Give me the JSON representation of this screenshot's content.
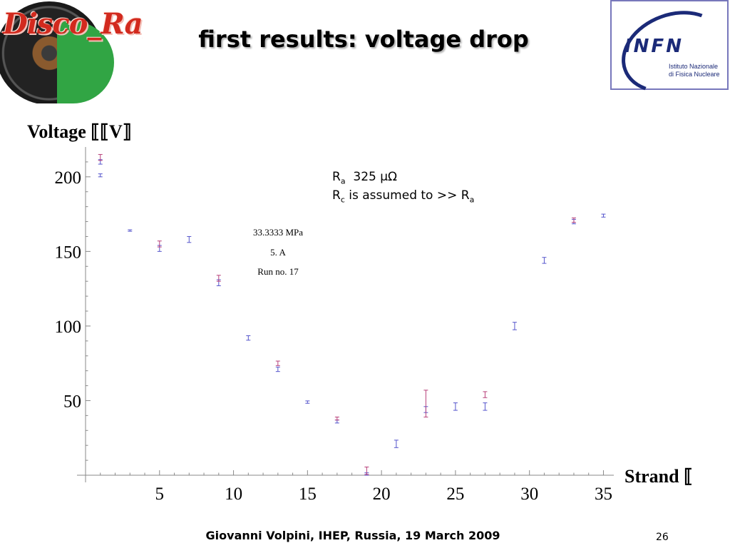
{
  "slide": {
    "title": "first results: voltage drop",
    "logo_left_text": "Disco_Rap",
    "logo_right": {
      "name": "INFN",
      "sub1": "Istituto Nazionale",
      "sub2": "di Fisica Nucleare"
    },
    "footer": "Giovanni Volpini, IHEP, Russia, 19 March 2009",
    "page_number": "26"
  },
  "annotations": {
    "ra_symbol": "R",
    "ra_sub": "a",
    "ra_value": "325 μΩ",
    "rc_symbol": "R",
    "rc_sub": "c",
    "rc_text": " is assumed to >> R",
    "rc_tail_sub": "a",
    "pressure": "33.3333 MPa",
    "current": "5. A",
    "run": "Run no. 17"
  },
  "chart_data": {
    "type": "scatter",
    "ylabel": "Voltage [μV]",
    "ylabel_display": "Voltage ⟦⟦V⟧",
    "xlabel": "Strand ⟦",
    "xlim": [
      0,
      35.7
    ],
    "ylim": [
      0,
      220
    ],
    "xticks": [
      5,
      10,
      15,
      20,
      25,
      30,
      35
    ],
    "yticks": [
      50,
      100,
      150,
      200
    ],
    "grid": false,
    "colors": {
      "blue": "#5555cc",
      "red": "#b8407a"
    },
    "series": [
      {
        "color": "blue",
        "points": [
          {
            "x": 1,
            "y": 210,
            "err": 1.5
          },
          {
            "x": 1,
            "y": 201,
            "err": 1
          },
          {
            "x": 3,
            "y": 164,
            "err": 0.5
          },
          {
            "x": 5,
            "y": 152,
            "err": 2
          },
          {
            "x": 7,
            "y": 158,
            "err": 2
          },
          {
            "x": 9,
            "y": 129,
            "err": 2
          },
          {
            "x": 11,
            "y": 92,
            "err": 1.5
          },
          {
            "x": 13,
            "y": 71,
            "err": 1.5
          },
          {
            "x": 15,
            "y": 49,
            "err": 0.8
          },
          {
            "x": 17,
            "y": 36,
            "err": 1
          },
          {
            "x": 19,
            "y": 0.8,
            "err": 0.8
          },
          {
            "x": 21,
            "y": 21,
            "err": 2.5
          },
          {
            "x": 23,
            "y": 44,
            "err": 2
          },
          {
            "x": 25,
            "y": 46,
            "err": 2.5
          },
          {
            "x": 27,
            "y": 46,
            "err": 2.5
          },
          {
            "x": 29,
            "y": 100,
            "err": 2.5
          },
          {
            "x": 31,
            "y": 144,
            "err": 2
          },
          {
            "x": 33,
            "y": 170,
            "err": 1.5
          },
          {
            "x": 35,
            "y": 174,
            "err": 1
          }
        ]
      },
      {
        "color": "red",
        "points": [
          {
            "x": 1,
            "y": 213,
            "err": 2
          },
          {
            "x": 5,
            "y": 155,
            "err": 2
          },
          {
            "x": 9,
            "y": 132,
            "err": 2
          },
          {
            "x": 13,
            "y": 75,
            "err": 1.5
          },
          {
            "x": 17,
            "y": 38,
            "err": 1
          },
          {
            "x": 19,
            "y": 3,
            "err": 2.5
          },
          {
            "x": 23,
            "y": 48,
            "err": 9
          },
          {
            "x": 27,
            "y": 54,
            "err": 2
          },
          {
            "x": 33,
            "y": 171,
            "err": 1.5
          }
        ]
      }
    ]
  }
}
